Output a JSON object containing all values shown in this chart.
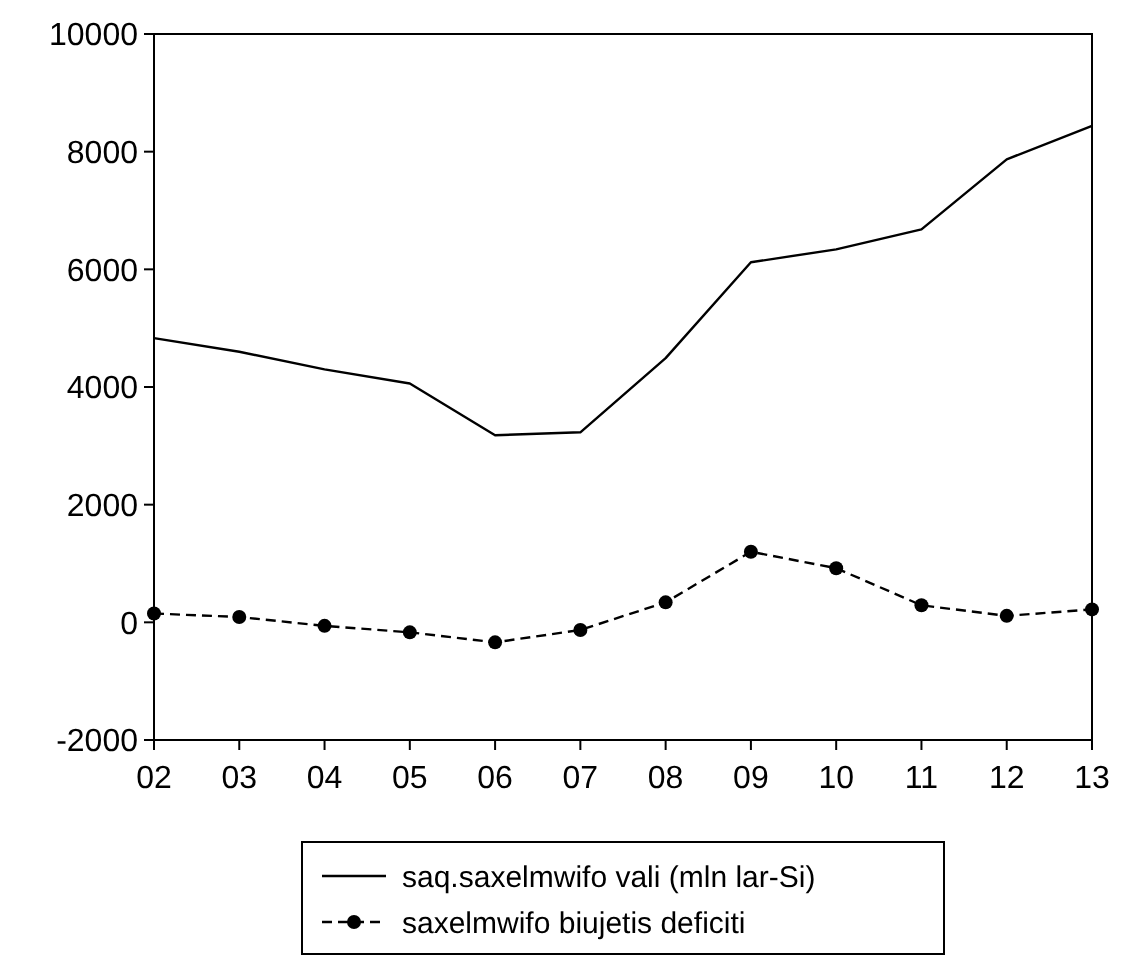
{
  "chart_data": {
    "type": "line",
    "categories": [
      "02",
      "03",
      "04",
      "05",
      "06",
      "07",
      "08",
      "09",
      "10",
      "11",
      "12",
      "13"
    ],
    "series": [
      {
        "name": "saq.saxelmwifo vali (mln lar-Si)",
        "color": "#000000",
        "line_style": "solid",
        "marker": "none",
        "values": [
          4830,
          4600,
          4300,
          4060,
          3180,
          3230,
          4490,
          6120,
          6340,
          6680,
          7870,
          8440
        ]
      },
      {
        "name": "saxelmwifo biujetis deficiti",
        "color": "#000000",
        "line_style": "dashed",
        "marker": "circle",
        "values": [
          150,
          90,
          -60,
          -170,
          -340,
          -130,
          340,
          1200,
          920,
          290,
          110,
          220
        ]
      }
    ],
    "ylim": [
      -2000,
      10000
    ],
    "yticks": [
      -2000,
      0,
      2000,
      4000,
      6000,
      8000,
      10000
    ],
    "grid": false,
    "legend": "bottom"
  }
}
